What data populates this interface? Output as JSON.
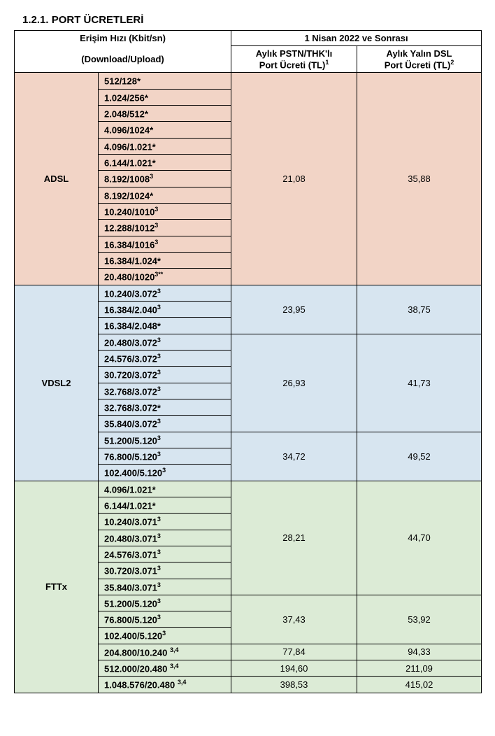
{
  "title": "1.2.1. PORT ÜCRETLERİ",
  "headers": {
    "access_speed_top": "Erişim Hızı (Kbit/sn)",
    "access_speed_bottom": "(Download/Upload)",
    "period": "1 Nisan 2022 ve Sonrası",
    "col_pstn_line1": "Aylık PSTN/THK'lı",
    "col_pstn_line2": "Port Ücreti (TL)",
    "col_pstn_sup": "1",
    "col_yalin_line1": "Aylık Yalın DSL",
    "col_yalin_line2": "Port Ücreti (TL)",
    "col_yalin_sup": "2"
  },
  "colors": {
    "adsl": "#f2d4c6",
    "vdsl": "#d7e5f0",
    "fttx": "#dcebd6"
  },
  "tech": {
    "adsl": "ADSL",
    "vdsl": "VDSL2",
    "fttx": "FTTx"
  },
  "adsl": {
    "speeds": [
      {
        "t": "512/128*"
      },
      {
        "t": "1.024/256*"
      },
      {
        "t": "2.048/512*"
      },
      {
        "t": "4.096/1024*"
      },
      {
        "t": "4.096/1.021*"
      },
      {
        "t": "6.144/1.021*"
      },
      {
        "t": "8.192/1008",
        "s": "3"
      },
      {
        "t": "8.192/1024*"
      },
      {
        "t": "10.240/1010",
        "s": "3"
      },
      {
        "t": "12.288/1012",
        "s": "3"
      },
      {
        "t": "16.384/1016",
        "s": "3"
      },
      {
        "t": "16.384/1.024*"
      },
      {
        "t": "20.480/1020",
        "s": "3**"
      }
    ],
    "pstn": "21,08",
    "yalin": "35,88"
  },
  "vdsl": {
    "g1": {
      "speeds": [
        {
          "t": "10.240/3.072",
          "s": "3"
        },
        {
          "t": "16.384/2.040",
          "s": "3"
        },
        {
          "t": "16.384/2.048*"
        }
      ],
      "pstn": "23,95",
      "yalin": "38,75"
    },
    "g2": {
      "speeds": [
        {
          "t": "20.480/3.072",
          "s": "3"
        },
        {
          "t": "24.576/3.072",
          "s": "3"
        },
        {
          "t": "30.720/3.072",
          "s": "3"
        },
        {
          "t": "32.768/3.072",
          "s": "3"
        },
        {
          "t": "32.768/3.072*"
        },
        {
          "t": "35.840/3.072",
          "s": "3"
        }
      ],
      "pstn": "26,93",
      "yalin": "41,73"
    },
    "g3": {
      "speeds": [
        {
          "t": "51.200/5.120",
          "s": "3"
        },
        {
          "t": "76.800/5.120",
          "s": "3"
        },
        {
          "t": "102.400/5.120",
          "s": "3"
        }
      ],
      "pstn": "34,72",
      "yalin": "49,52"
    }
  },
  "fttx": {
    "g1": {
      "speeds": [
        {
          "t": "4.096/1.021*"
        },
        {
          "t": "6.144/1.021*"
        },
        {
          "t": "10.240/3.071",
          "s": "3"
        },
        {
          "t": "20.480/3.071",
          "s": "3"
        },
        {
          "t": "24.576/3.071",
          "s": "3"
        },
        {
          "t": "30.720/3.071",
          "s": "3"
        },
        {
          "t": "35.840/3.071",
          "s": "3"
        }
      ],
      "pstn": "28,21",
      "yalin": "44,70"
    },
    "g2": {
      "speeds": [
        {
          "t": "51.200/5.120",
          "s": "3"
        },
        {
          "t": "76.800/5.120",
          "s": "3"
        },
        {
          "t": "102.400/5.120",
          "s": "3"
        }
      ],
      "pstn": "37,43",
      "yalin": "53,92"
    },
    "g3": {
      "speed": {
        "t": "204.800/10.240 ",
        "s": "3,4"
      },
      "pstn": "77,84",
      "yalin": "94,33"
    },
    "g4": {
      "speed": {
        "t": "512.000/20.480 ",
        "s": "3,4"
      },
      "pstn": "194,60",
      "yalin": "211,09"
    },
    "g5": {
      "speed": {
        "t": "1.048.576/20.480 ",
        "s": "3,4"
      },
      "pstn": "398,53",
      "yalin": "415,02"
    }
  }
}
